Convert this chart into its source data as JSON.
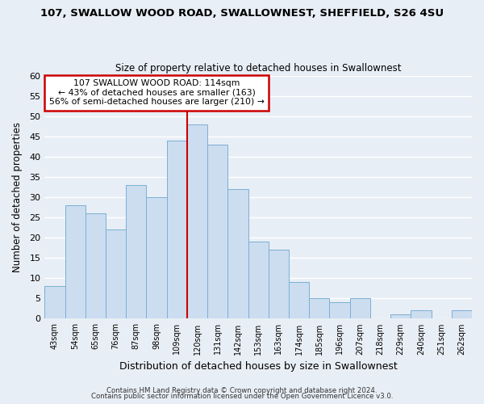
{
  "title": "107, SWALLOW WOOD ROAD, SWALLOWNEST, SHEFFIELD, S26 4SU",
  "subtitle": "Size of property relative to detached houses in Swallownest",
  "xlabel": "Distribution of detached houses by size in Swallownest",
  "ylabel": "Number of detached properties",
  "bin_labels": [
    "43sqm",
    "54sqm",
    "65sqm",
    "76sqm",
    "87sqm",
    "98sqm",
    "109sqm",
    "120sqm",
    "131sqm",
    "142sqm",
    "153sqm",
    "163sqm",
    "174sqm",
    "185sqm",
    "196sqm",
    "207sqm",
    "218sqm",
    "229sqm",
    "240sqm",
    "251sqm",
    "262sqm"
  ],
  "bar_heights": [
    8,
    28,
    26,
    22,
    33,
    30,
    44,
    48,
    43,
    32,
    19,
    17,
    9,
    5,
    4,
    5,
    0,
    1,
    2,
    0,
    2
  ],
  "bar_color": "#ccddf0",
  "bar_edge_color": "#7bafd4",
  "ylim": [
    0,
    60
  ],
  "yticks": [
    0,
    5,
    10,
    15,
    20,
    25,
    30,
    35,
    40,
    45,
    50,
    55,
    60
  ],
  "vline_color": "#cc0000",
  "annotation_line1": "107 SWALLOW WOOD ROAD: 114sqm",
  "annotation_line2": "← 43% of detached houses are smaller (163)",
  "annotation_line3": "56% of semi-detached houses are larger (210) →",
  "annotation_box_color": "#ffffff",
  "annotation_box_edge_color": "#cc0000",
  "footer_line1": "Contains HM Land Registry data © Crown copyright and database right 2024.",
  "footer_line2": "Contains public sector information licensed under the Open Government Licence v3.0.",
  "bg_color": "#e8eef5",
  "plot_bg_color": "#e8eef5",
  "grid_color": "#ffffff"
}
